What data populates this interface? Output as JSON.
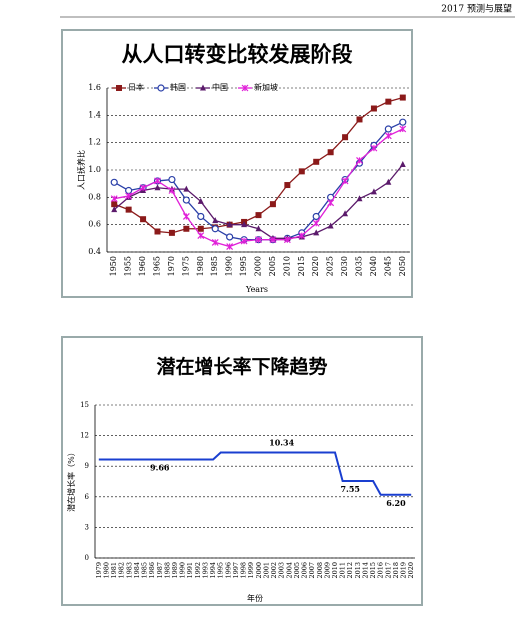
{
  "header": {
    "text": "2017 预测与展望"
  },
  "chart_data": [
    {
      "type": "line",
      "title": "从人口转变比较发展阶段",
      "y_label": "人口抚养比",
      "x_label": "Years",
      "categories": [
        "1950",
        "1955",
        "1960",
        "1965",
        "1970",
        "1975",
        "1980",
        "1985",
        "1990",
        "1995",
        "2000",
        "2005",
        "2010",
        "2015",
        "2020",
        "2025",
        "2030",
        "2035",
        "2040",
        "2045",
        "2050"
      ],
      "ylim": [
        0.4,
        1.6
      ],
      "yticks": [
        0.4,
        0.6,
        0.8,
        {
          "value": 1,
          "label": "1.0"
        },
        1.2,
        1.4,
        1.6
      ],
      "grid": true,
      "legend": "top",
      "series": [
        {
          "name": "日本",
          "color": "#8b1a1a",
          "marker": "square",
          "values": [
            0.75,
            0.71,
            0.64,
            0.55,
            0.54,
            0.57,
            0.57,
            0.58,
            0.6,
            0.62,
            0.67,
            0.75,
            0.89,
            0.99,
            1.06,
            1.13,
            1.24,
            1.37,
            1.45,
            1.5,
            1.53
          ]
        },
        {
          "name": "韩国",
          "color": "#2a3fa8",
          "marker": "circle",
          "values": [
            0.91,
            0.85,
            0.87,
            0.92,
            0.93,
            0.78,
            0.66,
            0.57,
            0.51,
            0.49,
            0.49,
            0.49,
            0.5,
            0.54,
            0.66,
            0.8,
            0.93,
            1.05,
            1.18,
            1.3,
            1.35
          ]
        },
        {
          "name": "中国",
          "color": "#5b1a6b",
          "marker": "triangle",
          "values": [
            0.71,
            0.8,
            0.85,
            0.87,
            0.86,
            0.86,
            0.77,
            0.63,
            0.6,
            0.6,
            0.57,
            0.5,
            0.5,
            0.51,
            0.54,
            0.59,
            0.68,
            0.79,
            0.84,
            0.91,
            1.04
          ]
        },
        {
          "name": "新加坡",
          "color": "#e020d8",
          "marker": "x",
          "values": [
            0.79,
            0.81,
            0.87,
            0.92,
            0.85,
            0.66,
            0.52,
            0.47,
            0.44,
            0.48,
            0.49,
            0.49,
            0.49,
            0.52,
            0.61,
            0.76,
            0.92,
            1.07,
            1.16,
            1.25,
            1.3
          ]
        }
      ]
    },
    {
      "type": "line",
      "title": "潜在增长率下降趋势",
      "y_label": "潜在增长率（%）",
      "x_label": "年份",
      "categories": [
        "1979",
        "1980",
        "1981",
        "1982",
        "1983",
        "1984",
        "1985",
        "1986",
        "1987",
        "1988",
        "1989",
        "1990",
        "1991",
        "1992",
        "1993",
        "1994",
        "1995",
        "1996",
        "1997",
        "1998",
        "1999",
        "2000",
        "2001",
        "2002",
        "2003",
        "2004",
        "2005",
        "2006",
        "2007",
        "2008",
        "2009",
        "2010",
        "2011",
        "2012",
        "2013",
        "2014",
        "2015",
        "2016",
        "2017",
        "2018",
        "2019",
        "2020"
      ],
      "ylim": [
        0,
        15
      ],
      "yticks": [
        0,
        3,
        6,
        9,
        12,
        15
      ],
      "grid": true,
      "color": "#1a3fd0",
      "value_label_color": "#e02828",
      "values": [
        9.66,
        9.66,
        9.66,
        9.66,
        9.66,
        9.66,
        9.66,
        9.66,
        9.66,
        9.66,
        9.66,
        9.66,
        9.66,
        9.66,
        9.66,
        9.66,
        10.34,
        10.34,
        10.34,
        10.34,
        10.34,
        10.34,
        10.34,
        10.34,
        10.34,
        10.34,
        10.34,
        10.34,
        10.34,
        10.34,
        10.34,
        10.34,
        7.55,
        7.55,
        7.55,
        7.55,
        7.55,
        6.2,
        6.2,
        6.2,
        6.2,
        6.2
      ],
      "value_labels": [
        null,
        null,
        null,
        null,
        null,
        null,
        null,
        null,
        "9.66",
        null,
        null,
        null,
        null,
        null,
        null,
        null,
        null,
        null,
        null,
        null,
        null,
        null,
        null,
        null,
        "10.34",
        null,
        null,
        null,
        null,
        null,
        null,
        null,
        null,
        "7.55",
        null,
        null,
        null,
        null,
        null,
        "6.20",
        null,
        null
      ]
    }
  ]
}
